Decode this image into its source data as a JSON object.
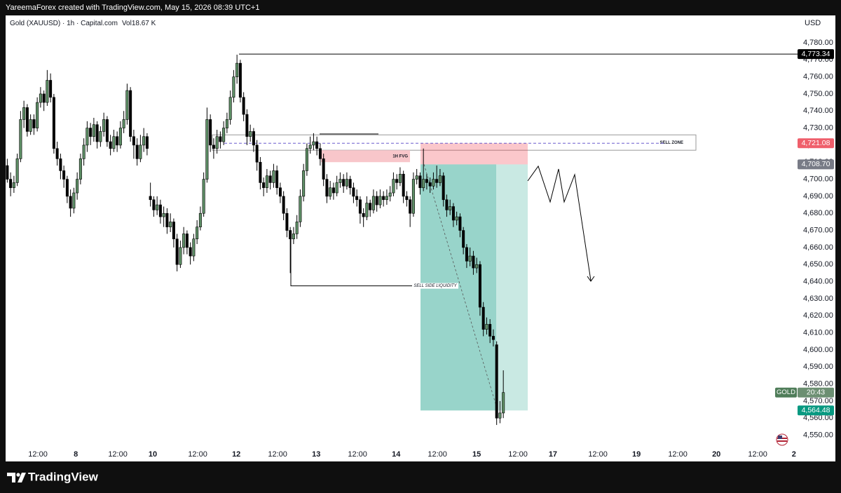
{
  "page": {
    "watermark": "YareemaForex created with TradingView.com, May 15, 2026 08:39 UTC+1",
    "brand": "TradingView"
  },
  "chart_data": {
    "type": "candlestick",
    "title": "Gold (XAUUSD) · 1h · Capital.com",
    "volume_label": "Vol",
    "volume_value": "18.67 K",
    "currency": "USD",
    "up_color": "#5e8f66",
    "down_color": "#000000",
    "wick_color": "#000000",
    "grid": false,
    "xlim": [
      0,
      238.3
    ],
    "ylim": [
      4542,
      4796
    ],
    "xticks": [
      {
        "value": 9.7,
        "label": "12:00"
      },
      {
        "value": 21.1,
        "label": "8"
      },
      {
        "value": 33.7,
        "label": "12:00"
      },
      {
        "value": 44.2,
        "label": "10"
      },
      {
        "value": 57.7,
        "label": "12:00"
      },
      {
        "value": 69.3,
        "label": "12"
      },
      {
        "value": 81.7,
        "label": "12:00"
      },
      {
        "value": 93.3,
        "label": "13"
      },
      {
        "value": 105.7,
        "label": "12:00"
      },
      {
        "value": 117.3,
        "label": "14"
      },
      {
        "value": 129.7,
        "label": "12:00"
      },
      {
        "value": 141.5,
        "label": "15"
      },
      {
        "value": 153.9,
        "label": "12:00"
      },
      {
        "value": 164.4,
        "label": "17"
      },
      {
        "value": 177.9,
        "label": "12:00"
      },
      {
        "value": 189.5,
        "label": "19"
      },
      {
        "value": 201.9,
        "label": "12:00"
      },
      {
        "value": 213.5,
        "label": "20"
      },
      {
        "value": 225.9,
        "label": "12:00"
      },
      {
        "value": 236.8,
        "label": "2"
      }
    ],
    "yticks": [
      {
        "value": 4550,
        "label": "4,550.00"
      },
      {
        "value": 4560,
        "label": "4,560.00"
      },
      {
        "value": 4570,
        "label": "4,570.00"
      },
      {
        "value": 4580,
        "label": "4,580.00"
      },
      {
        "value": 4590,
        "label": "4,590.00"
      },
      {
        "value": 4600,
        "label": "4,600.00"
      },
      {
        "value": 4610,
        "label": "4,610.00"
      },
      {
        "value": 4620,
        "label": "4,620.00"
      },
      {
        "value": 4630,
        "label": "4,630.00"
      },
      {
        "value": 4640,
        "label": "4,640.00"
      },
      {
        "value": 4650,
        "label": "4,650.00"
      },
      {
        "value": 4660,
        "label": "4,660.00"
      },
      {
        "value": 4670,
        "label": "4,670.00"
      },
      {
        "value": 4680,
        "label": "4,680.00"
      },
      {
        "value": 4690,
        "label": "4,690.00"
      },
      {
        "value": 4700,
        "label": "4,700.00"
      },
      {
        "value": 4710,
        "label": "4,710.00"
      },
      {
        "value": 4720,
        "label": "4,720.00"
      },
      {
        "value": 4730,
        "label": "4,730.00"
      },
      {
        "value": 4740,
        "label": "4,740.00"
      },
      {
        "value": 4750,
        "label": "4,750.00"
      },
      {
        "value": 4760,
        "label": "4,760.00"
      },
      {
        "value": 4770,
        "label": "4,770.00"
      },
      {
        "value": 4780,
        "label": "4,780.00"
      }
    ],
    "ohlc": [
      [
        4708,
        4712,
        4698,
        4700
      ],
      [
        4700,
        4704,
        4690,
        4695
      ],
      [
        4695,
        4702,
        4692,
        4698
      ],
      [
        4698,
        4715,
        4696,
        4712
      ],
      [
        4712,
        4740,
        4710,
        4735
      ],
      [
        4735,
        4746,
        4730,
        4742
      ],
      [
        4742,
        4744,
        4725,
        4728
      ],
      [
        4728,
        4738,
        4726,
        4735
      ],
      [
        4735,
        4738,
        4726,
        4730
      ],
      [
        4730,
        4748,
        4728,
        4745
      ],
      [
        4745,
        4754,
        4742,
        4750
      ],
      [
        4750,
        4752,
        4740,
        4745
      ],
      [
        4745,
        4764,
        4743,
        4758
      ],
      [
        4758,
        4762,
        4745,
        4748
      ],
      [
        4748,
        4750,
        4715,
        4718
      ],
      [
        4718,
        4722,
        4708,
        4712
      ],
      [
        4712,
        4715,
        4700,
        4705
      ],
      [
        4705,
        4708,
        4695,
        4700
      ],
      [
        4700,
        4702,
        4686,
        4690
      ],
      [
        4690,
        4694,
        4678,
        4683
      ],
      [
        4683,
        4695,
        4680,
        4692
      ],
      [
        4692,
        4704,
        4688,
        4700
      ],
      [
        4700,
        4715,
        4697,
        4712
      ],
      [
        4712,
        4724,
        4708,
        4720
      ],
      [
        4720,
        4734,
        4716,
        4730
      ],
      [
        4730,
        4733,
        4720,
        4725
      ],
      [
        4725,
        4736,
        4722,
        4732
      ],
      [
        4732,
        4734,
        4718,
        4722
      ],
      [
        4722,
        4731,
        4719,
        4728
      ],
      [
        4728,
        4739,
        4725,
        4735
      ],
      [
        4735,
        4737,
        4719,
        4722
      ],
      [
        4722,
        4726,
        4714,
        4718
      ],
      [
        4718,
        4729,
        4716,
        4725
      ],
      [
        4725,
        4728,
        4716,
        4720
      ],
      [
        4720,
        4734,
        4718,
        4730
      ],
      [
        4730,
        4740,
        4727,
        4735
      ],
      [
        4735,
        4756,
        4732,
        4752
      ],
      [
        4752,
        4754,
        4722,
        4725
      ],
      [
        4725,
        4729,
        4712,
        4720
      ],
      [
        4720,
        4724,
        4708,
        4712
      ],
      [
        4712,
        4726,
        4710,
        4720
      ],
      [
        4720,
        4730,
        4716,
        4725
      ],
      [
        4725,
        4727,
        4714,
        4718
      ],
      [
        4690,
        4698,
        4684,
        4688
      ],
      [
        4688,
        4690,
        4678,
        4682
      ],
      [
        4682,
        4690,
        4679,
        4685
      ],
      [
        4685,
        4688,
        4674,
        4678
      ],
      [
        4678,
        4684,
        4672,
        4680
      ],
      [
        4680,
        4683,
        4668,
        4672
      ],
      [
        4672,
        4680,
        4669,
        4675
      ],
      [
        4675,
        4677,
        4660,
        4665
      ],
      [
        4665,
        4668,
        4646,
        4650
      ],
      [
        4650,
        4664,
        4648,
        4660
      ],
      [
        4660,
        4672,
        4656,
        4668
      ],
      [
        4668,
        4670,
        4656,
        4660
      ],
      [
        4660,
        4663,
        4650,
        4655
      ],
      [
        4655,
        4668,
        4652,
        4665
      ],
      [
        4665,
        4676,
        4662,
        4672
      ],
      [
        4672,
        4684,
        4670,
        4680
      ],
      [
        4680,
        4704,
        4678,
        4700
      ],
      [
        4700,
        4742,
        4698,
        4735
      ],
      [
        4735,
        4738,
        4716,
        4720
      ],
      [
        4720,
        4724,
        4712,
        4718
      ],
      [
        4718,
        4729,
        4715,
        4725
      ],
      [
        4725,
        4728,
        4718,
        4722
      ],
      [
        4722,
        4734,
        4720,
        4730
      ],
      [
        4730,
        4739,
        4727,
        4735
      ],
      [
        4735,
        4752,
        4732,
        4748
      ],
      [
        4748,
        4764,
        4745,
        4760
      ],
      [
        4760,
        4773,
        4756,
        4768
      ],
      [
        4768,
        4770,
        4745,
        4748
      ],
      [
        4748,
        4751,
        4734,
        4738
      ],
      [
        4738,
        4741,
        4720,
        4725
      ],
      [
        4725,
        4732,
        4722,
        4728
      ],
      [
        4728,
        4730,
        4716,
        4720
      ],
      [
        4720,
        4723,
        4705,
        4710
      ],
      [
        4710,
        4713,
        4694,
        4698
      ],
      [
        4698,
        4701,
        4690,
        4695
      ],
      [
        4695,
        4706,
        4692,
        4702
      ],
      [
        4702,
        4705,
        4694,
        4698
      ],
      [
        4698,
        4709,
        4695,
        4705
      ],
      [
        4705,
        4708,
        4691,
        4695
      ],
      [
        4695,
        4698,
        4686,
        4690
      ],
      [
        4690,
        4693,
        4676,
        4680
      ],
      [
        4680,
        4683,
        4666,
        4670
      ],
      [
        4670,
        4672,
        4645,
        4665
      ],
      [
        4665,
        4672,
        4662,
        4668
      ],
      [
        4668,
        4679,
        4665,
        4675
      ],
      [
        4675,
        4694,
        4672,
        4690
      ],
      [
        4690,
        4709,
        4687,
        4705
      ],
      [
        4705,
        4721,
        4702,
        4718
      ],
      [
        4718,
        4725,
        4715,
        4720
      ],
      [
        4720,
        4727,
        4717,
        4722
      ],
      [
        4722,
        4725,
        4714,
        4718
      ],
      [
        4718,
        4721,
        4708,
        4712
      ],
      [
        4712,
        4715,
        4696,
        4700
      ],
      [
        4700,
        4703,
        4686,
        4690
      ],
      [
        4690,
        4699,
        4688,
        4695
      ],
      [
        4695,
        4698,
        4688,
        4692
      ],
      [
        4692,
        4702,
        4690,
        4698
      ],
      [
        4698,
        4704,
        4695,
        4700
      ],
      [
        4700,
        4703,
        4692,
        4696
      ],
      [
        4696,
        4704,
        4694,
        4700
      ],
      [
        4700,
        4702,
        4691,
        4695
      ],
      [
        4695,
        4698,
        4686,
        4690
      ],
      [
        4690,
        4694,
        4684,
        4688
      ],
      [
        4688,
        4690,
        4674,
        4680
      ],
      [
        4680,
        4683,
        4672,
        4678
      ],
      [
        4678,
        4690,
        4676,
        4686
      ],
      [
        4686,
        4688,
        4678,
        4682
      ],
      [
        4682,
        4694,
        4680,
        4690
      ],
      [
        4690,
        4693,
        4681,
        4685
      ],
      [
        4685,
        4694,
        4683,
        4690
      ],
      [
        4690,
        4693,
        4684,
        4688
      ],
      [
        4688,
        4694,
        4685,
        4690
      ],
      [
        4690,
        4696,
        4687,
        4692
      ],
      [
        4692,
        4704,
        4690,
        4700
      ],
      [
        4700,
        4703,
        4694,
        4698
      ],
      [
        4698,
        4707,
        4696,
        4703
      ],
      [
        4703,
        4705,
        4686,
        4690
      ],
      [
        4690,
        4693,
        4684,
        4688
      ],
      [
        4688,
        4690,
        4672,
        4680
      ],
      [
        4680,
        4704,
        4678,
        4700
      ],
      [
        4700,
        4706,
        4697,
        4702
      ],
      [
        4702,
        4704,
        4691,
        4695
      ],
      [
        4695,
        4718,
        4693,
        4700
      ],
      [
        4700,
        4703,
        4694,
        4698
      ],
      [
        4698,
        4701,
        4692,
        4696
      ],
      [
        4696,
        4704,
        4694,
        4700
      ],
      [
        4700,
        4708,
        4695,
        4698
      ],
      [
        4698,
        4706,
        4696,
        4702
      ],
      [
        4702,
        4704,
        4684,
        4688
      ],
      [
        4688,
        4691,
        4678,
        4682
      ],
      [
        4682,
        4688,
        4679,
        4684
      ],
      [
        4684,
        4686,
        4672,
        4676
      ],
      [
        4676,
        4681,
        4673,
        4678
      ],
      [
        4678,
        4680,
        4666,
        4670
      ],
      [
        4670,
        4672,
        4656,
        4660
      ],
      [
        4660,
        4662,
        4648,
        4652
      ],
      [
        4652,
        4660,
        4649,
        4655
      ],
      [
        4655,
        4658,
        4644,
        4648
      ],
      [
        4648,
        4654,
        4645,
        4650
      ],
      [
        4650,
        4652,
        4620,
        4625
      ],
      [
        4625,
        4628,
        4608,
        4612
      ],
      [
        4612,
        4619,
        4609,
        4615
      ],
      [
        4615,
        4618,
        4604,
        4608
      ],
      [
        4608,
        4612,
        4602,
        4606
      ],
      [
        4603,
        4605,
        4556,
        4560
      ],
      [
        4560,
        4570,
        4557,
        4563
      ],
      [
        4563,
        4588,
        4560,
        4575
      ]
    ],
    "price_labels": [
      {
        "value": 4773.34,
        "label": "4,773.34",
        "color": "#000000"
      },
      {
        "value": 4721.08,
        "label": "4,721.08",
        "color": "#ef5f6b"
      },
      {
        "value": 4708.7,
        "label": "4,708.70",
        "color": "#787b86"
      },
      {
        "value": 4564.48,
        "label": "4,564.48",
        "color": "#089981"
      }
    ],
    "current": {
      "symbol": "GOLD",
      "countdown": "20:43"
    },
    "sell_zone": {
      "label": "SELL ZONE",
      "top": 4726,
      "bottom": 4717
    },
    "fvg": {
      "label": "1H FVG",
      "top": 4717,
      "bottom": 4710
    },
    "liquidity": {
      "label": "SELL SIDE LIQUIDITY",
      "value": 4637.5
    }
  }
}
